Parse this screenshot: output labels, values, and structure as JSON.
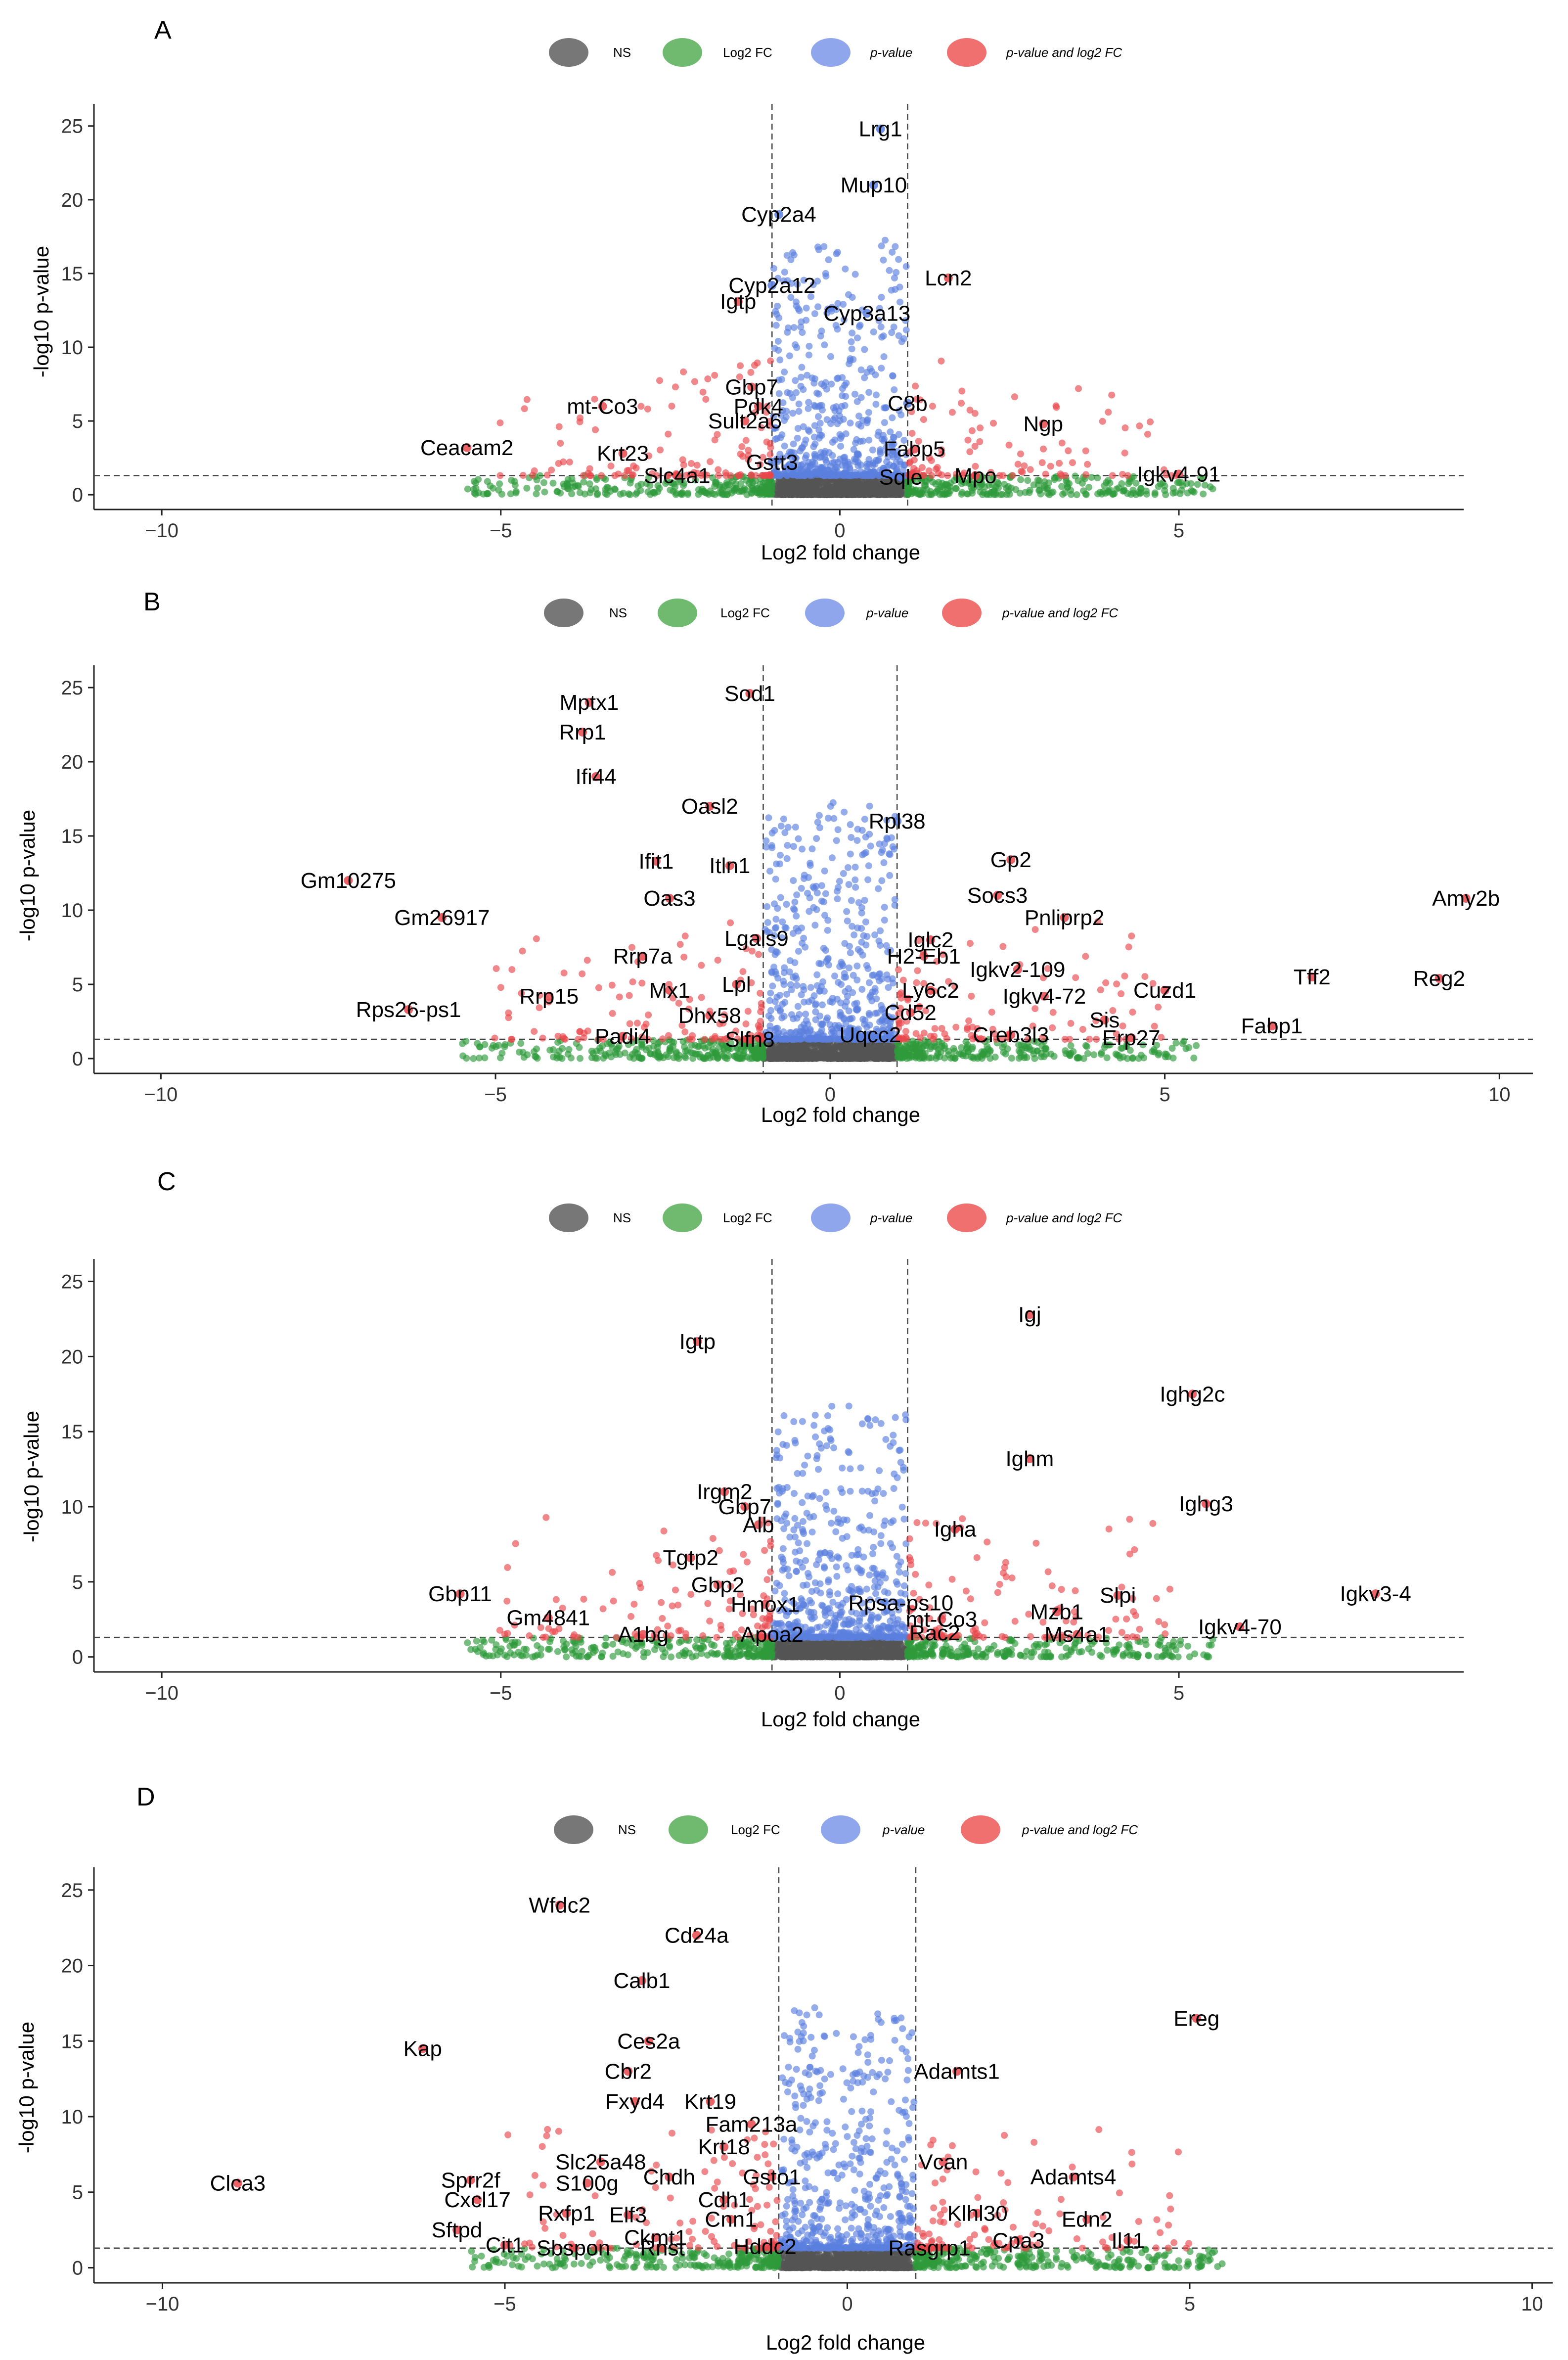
{
  "figure": {
    "legend": {
      "entries": [
        {
          "name": "NS",
          "color": "#555555"
        },
        {
          "name": "Log2 FC",
          "color": "#2e9a3a"
        },
        {
          "name": "p-value",
          "color": "#5b7fde"
        },
        {
          "name": "p-value and log2 FC",
          "color": "#e8474c"
        }
      ]
    }
  },
  "chart_data": [
    {
      "type": "scatter",
      "panel": "A",
      "title": "",
      "xlabel": "Log2 fold change",
      "ylabel": "-log10 p-value",
      "xlim": [
        -11,
        9.2
      ],
      "ylim": [
        -1,
        26.5
      ],
      "xticks": [
        -10,
        -5,
        0,
        5
      ],
      "yticks": [
        0,
        5,
        10,
        15,
        20,
        25
      ],
      "fc_cutoff": 1,
      "p_cutoff": 1.3,
      "genes": [
        {
          "label": "Lrg1",
          "x": 0.6,
          "y": 24.8
        },
        {
          "label": "Mup10",
          "x": 0.5,
          "y": 21.0
        },
        {
          "label": "Cyp2a4",
          "x": -0.9,
          "y": 19.0
        },
        {
          "label": "Cyp2a12",
          "x": -1.0,
          "y": 14.2
        },
        {
          "label": "Lcn2",
          "x": 1.6,
          "y": 14.7
        },
        {
          "label": "Igtp",
          "x": -1.5,
          "y": 13.1
        },
        {
          "label": "Cyp3a13",
          "x": 0.4,
          "y": 12.3
        },
        {
          "label": "Gbp7",
          "x": -1.3,
          "y": 7.3
        },
        {
          "label": "Pdk4",
          "x": -1.2,
          "y": 6.0
        },
        {
          "label": "C8b",
          "x": 1.0,
          "y": 6.2
        },
        {
          "label": "mt-Co3",
          "x": -3.5,
          "y": 6.0
        },
        {
          "label": "Sult2a6",
          "x": -1.4,
          "y": 5.0
        },
        {
          "label": "Ngp",
          "x": 3.0,
          "y": 4.8
        },
        {
          "label": "Ceacam2",
          "x": -5.5,
          "y": 3.2
        },
        {
          "label": "Krt23",
          "x": -3.2,
          "y": 2.8
        },
        {
          "label": "Fabp5",
          "x": 1.1,
          "y": 3.1
        },
        {
          "label": "Gstt3",
          "x": -1.0,
          "y": 2.2
        },
        {
          "label": "Slc4a1",
          "x": -2.4,
          "y": 1.3
        },
        {
          "label": "Sqle",
          "x": 0.9,
          "y": 1.2
        },
        {
          "label": "Mpo",
          "x": 2.0,
          "y": 1.3
        },
        {
          "label": "Igkv4-91",
          "x": 5.0,
          "y": 1.4
        }
      ]
    },
    {
      "type": "scatter",
      "panel": "B",
      "title": "",
      "xlabel": "Log2 fold change",
      "ylabel": "-log10 p-value",
      "xlim": [
        -11,
        10.5
      ],
      "ylim": [
        -1,
        26.5
      ],
      "xticks": [
        -10,
        -5,
        0,
        5,
        10
      ],
      "yticks": [
        0,
        5,
        10,
        15,
        20,
        25
      ],
      "fc_cutoff": 1,
      "p_cutoff": 1.3,
      "genes": [
        {
          "label": "Sod1",
          "x": -1.2,
          "y": 24.6
        },
        {
          "label": "Mptx1",
          "x": -3.6,
          "y": 24.0
        },
        {
          "label": "Rrp1",
          "x": -3.7,
          "y": 22.0
        },
        {
          "label": "Ifi44",
          "x": -3.5,
          "y": 19.0
        },
        {
          "label": "Oasl2",
          "x": -1.8,
          "y": 17.0
        },
        {
          "label": "Rpl38",
          "x": 1.0,
          "y": 16.0
        },
        {
          "label": "Gp2",
          "x": 2.7,
          "y": 13.4
        },
        {
          "label": "Ifit1",
          "x": -2.6,
          "y": 13.3
        },
        {
          "label": "Itln1",
          "x": -1.5,
          "y": 13.0
        },
        {
          "label": "Gm10275",
          "x": -7.2,
          "y": 12.0
        },
        {
          "label": "Socs3",
          "x": 2.5,
          "y": 11.0
        },
        {
          "label": "Amy2b",
          "x": 9.5,
          "y": 10.8
        },
        {
          "label": "Oas3",
          "x": -2.4,
          "y": 10.8
        },
        {
          "label": "Gm26917",
          "x": -5.8,
          "y": 9.5
        },
        {
          "label": "Pnliprp2",
          "x": 3.5,
          "y": 9.5
        },
        {
          "label": "Lgals9",
          "x": -1.1,
          "y": 8.1
        },
        {
          "label": "Iglc2",
          "x": 1.5,
          "y": 8.0
        },
        {
          "label": "Rrp7a",
          "x": -2.8,
          "y": 6.9
        },
        {
          "label": "H2-Eb1",
          "x": 1.4,
          "y": 6.9
        },
        {
          "label": "Igkv2-109",
          "x": 2.8,
          "y": 6.0
        },
        {
          "label": "Tff2",
          "x": 7.2,
          "y": 5.5
        },
        {
          "label": "Reg2",
          "x": 9.1,
          "y": 5.4
        },
        {
          "label": "Mx1",
          "x": -2.4,
          "y": 4.6
        },
        {
          "label": "Lpl",
          "x": -1.4,
          "y": 5.0
        },
        {
          "label": "Cuzd1",
          "x": 5.0,
          "y": 4.6
        },
        {
          "label": "Rrp15",
          "x": -4.2,
          "y": 4.2
        },
        {
          "label": "Ly6c2",
          "x": 1.5,
          "y": 4.6
        },
        {
          "label": "Igkv4-72",
          "x": 3.2,
          "y": 4.2
        },
        {
          "label": "Rps26-ps1",
          "x": -6.3,
          "y": 3.3
        },
        {
          "label": "Dhx58",
          "x": -1.8,
          "y": 2.9
        },
        {
          "label": "Cd52",
          "x": 1.2,
          "y": 3.1
        },
        {
          "label": "Sis",
          "x": 4.1,
          "y": 2.6
        },
        {
          "label": "Fabp1",
          "x": 6.6,
          "y": 2.2
        },
        {
          "label": "Padi4",
          "x": -3.1,
          "y": 1.5
        },
        {
          "label": "Slfn8",
          "x": -1.2,
          "y": 1.3
        },
        {
          "label": "Uqcc2",
          "x": 0.6,
          "y": 1.6
        },
        {
          "label": "Creb3l3",
          "x": 2.7,
          "y": 1.6
        },
        {
          "label": "Erp27",
          "x": 4.5,
          "y": 1.4
        }
      ]
    },
    {
      "type": "scatter",
      "panel": "C",
      "title": "",
      "xlabel": "Log2 fold change",
      "ylabel": "-log10 p-value",
      "xlim": [
        -11,
        9.2
      ],
      "ylim": [
        -1,
        26.5
      ],
      "xticks": [
        -10,
        -5,
        0,
        5
      ],
      "yticks": [
        0,
        5,
        10,
        15,
        20,
        25
      ],
      "fc_cutoff": 1,
      "p_cutoff": 1.3,
      "genes": [
        {
          "label": "Igj",
          "x": 2.8,
          "y": 22.8
        },
        {
          "label": "Igtp",
          "x": -2.1,
          "y": 21.0
        },
        {
          "label": "Ighg2c",
          "x": 5.2,
          "y": 17.5
        },
        {
          "label": "Ighm",
          "x": 2.8,
          "y": 13.2
        },
        {
          "label": "Irgm2",
          "x": -1.7,
          "y": 11.0
        },
        {
          "label": "Ighg3",
          "x": 5.4,
          "y": 10.2
        },
        {
          "label": "Gbp7",
          "x": -1.4,
          "y": 10.0
        },
        {
          "label": "Alb",
          "x": -1.2,
          "y": 8.8
        },
        {
          "label": "Igha",
          "x": 1.7,
          "y": 8.5
        },
        {
          "label": "Tgtp2",
          "x": -2.2,
          "y": 6.6
        },
        {
          "label": "Gbp2",
          "x": -1.8,
          "y": 4.8
        },
        {
          "label": "Gbp11",
          "x": -5.6,
          "y": 4.2
        },
        {
          "label": "Igkv3-4",
          "x": 7.9,
          "y": 4.2
        },
        {
          "label": "Slpi",
          "x": 4.1,
          "y": 4.1
        },
        {
          "label": "Hmox1",
          "x": -1.1,
          "y": 3.5
        },
        {
          "label": "Rpsa-ps10",
          "x": 0.9,
          "y": 3.6
        },
        {
          "label": "Mzb1",
          "x": 3.2,
          "y": 3.0
        },
        {
          "label": "Gm4841",
          "x": -4.3,
          "y": 2.6
        },
        {
          "label": "mt-Co3",
          "x": 1.5,
          "y": 2.5
        },
        {
          "label": "Igkv4-70",
          "x": 5.9,
          "y": 2.0
        },
        {
          "label": "A1bg",
          "x": -2.9,
          "y": 1.5
        },
        {
          "label": "Apoa2",
          "x": -1.0,
          "y": 1.5
        },
        {
          "label": "Rac2",
          "x": 1.4,
          "y": 1.6
        },
        {
          "label": "Ms4a1",
          "x": 3.5,
          "y": 1.5
        }
      ]
    },
    {
      "type": "scatter",
      "panel": "D",
      "title": "",
      "xlabel": "Log2 fold change",
      "ylabel": "-log10 p-value",
      "xlim": [
        -11,
        10.3
      ],
      "ylim": [
        -1,
        26.5
      ],
      "xticks": [
        -10,
        -5,
        0,
        5,
        10
      ],
      "yticks": [
        0,
        5,
        10,
        15,
        20,
        25
      ],
      "fc_cutoff": 1,
      "p_cutoff": 1.3,
      "genes": [
        {
          "label": "Wfdc2",
          "x": -4.2,
          "y": 24.0
        },
        {
          "label": "Cd24a",
          "x": -2.2,
          "y": 22.0
        },
        {
          "label": "Calb1",
          "x": -3.0,
          "y": 19.0
        },
        {
          "label": "Ereg",
          "x": 5.1,
          "y": 16.5
        },
        {
          "label": "Ces2a",
          "x": -2.9,
          "y": 15.0
        },
        {
          "label": "Kap",
          "x": -6.2,
          "y": 14.5
        },
        {
          "label": "Cbr2",
          "x": -3.2,
          "y": 13.0
        },
        {
          "label": "Adamts1",
          "x": 1.6,
          "y": 13.0
        },
        {
          "label": "Fxyd4",
          "x": -3.1,
          "y": 11.0
        },
        {
          "label": "Krt19",
          "x": -2.0,
          "y": 11.0
        },
        {
          "label": "Fam213a",
          "x": -1.4,
          "y": 9.5
        },
        {
          "label": "Krt18",
          "x": -1.8,
          "y": 8.0
        },
        {
          "label": "Slc25a48",
          "x": -3.6,
          "y": 7.0
        },
        {
          "label": "Vcan",
          "x": 1.4,
          "y": 7.0
        },
        {
          "label": "Chdh",
          "x": -2.6,
          "y": 6.0
        },
        {
          "label": "Gsto1",
          "x": -1.1,
          "y": 6.0
        },
        {
          "label": "Adamts4",
          "x": 3.3,
          "y": 6.0
        },
        {
          "label": "Sprr2f",
          "x": -5.5,
          "y": 5.8
        },
        {
          "label": "Clca3",
          "x": -8.9,
          "y": 5.6
        },
        {
          "label": "S100g",
          "x": -3.8,
          "y": 5.6
        },
        {
          "label": "Cxcl17",
          "x": -5.4,
          "y": 4.5
        },
        {
          "label": "Cdh1",
          "x": -1.8,
          "y": 4.5
        },
        {
          "label": "Rxfp1",
          "x": -4.1,
          "y": 3.6
        },
        {
          "label": "Elf3",
          "x": -3.2,
          "y": 3.5
        },
        {
          "label": "Klhl30",
          "x": 1.9,
          "y": 3.6
        },
        {
          "label": "Cnn1",
          "x": -1.7,
          "y": 3.2
        },
        {
          "label": "Edn2",
          "x": 3.5,
          "y": 3.2
        },
        {
          "label": "Sftpd",
          "x": -5.7,
          "y": 2.5
        },
        {
          "label": "Ckmt1",
          "x": -2.8,
          "y": 2.0
        },
        {
          "label": "Cpa3",
          "x": 2.5,
          "y": 1.8
        },
        {
          "label": "Il11",
          "x": 4.1,
          "y": 1.8
        },
        {
          "label": "Cit1",
          "x": -5.0,
          "y": 1.5
        },
        {
          "label": "Sbspon",
          "x": -4.0,
          "y": 1.3
        },
        {
          "label": "Rnst",
          "x": -2.7,
          "y": 1.3
        },
        {
          "label": "Hddc2",
          "x": -1.2,
          "y": 1.4
        },
        {
          "label": "Rasgrp1",
          "x": 1.2,
          "y": 1.3
        }
      ]
    }
  ]
}
